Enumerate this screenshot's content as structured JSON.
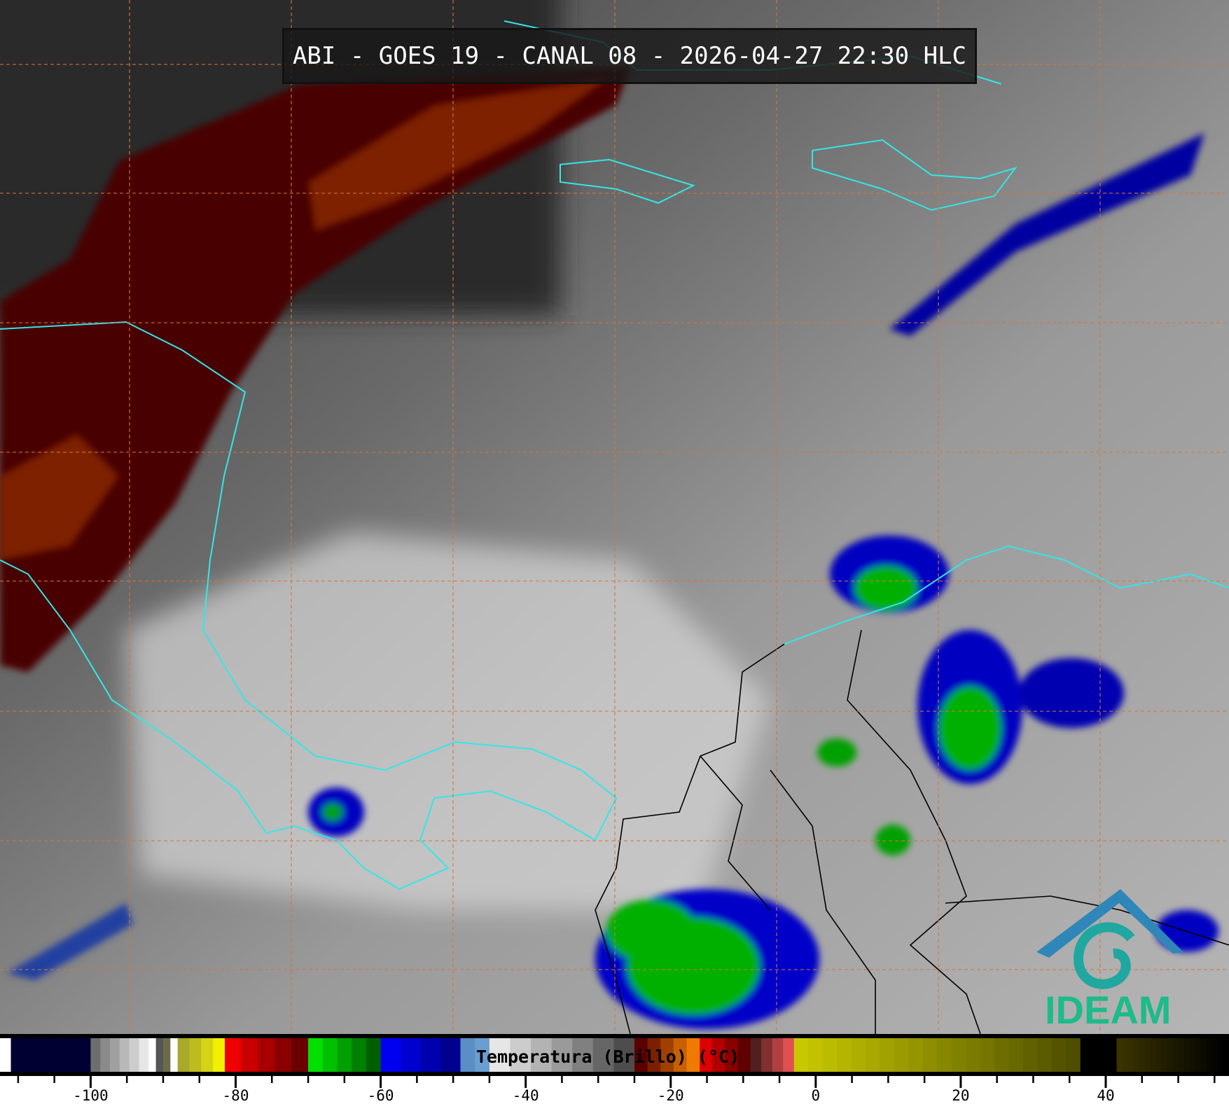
{
  "title": "ABI - GOES 19 - CANAL 08 - 2026-04-27 22:30 HLC",
  "logo": {
    "text": "IDEAM",
    "colors": {
      "roof": "#2f86b8",
      "swirl": "#1fa7a0",
      "text": "#1dbb8a"
    }
  },
  "map_colors": {
    "coastline": "#33e6e6",
    "borders": "#000000",
    "grid": "#d2773a"
  },
  "colorbar": {
    "label": "Temperatura (Brillo) (°C)",
    "range": [
      -112.5,
      57
    ],
    "ticks_major": [
      -100,
      -80,
      -60,
      -40,
      -20,
      0,
      20,
      40
    ],
    "tick_labels": [
      "-100",
      "-80",
      "-60",
      "-40",
      "-20",
      "0",
      "20",
      "40"
    ],
    "minor_step": 5,
    "segments": [
      {
        "from": -112.5,
        "to": -111,
        "colors": [
          "#ffffff"
        ]
      },
      {
        "from": -111,
        "to": -100,
        "colors": [
          "#000033"
        ]
      },
      {
        "from": -100,
        "to": -92,
        "colors": [
          "#6e6e6e",
          "#8a8a8a",
          "#a0a0a0",
          "#b8b8b8",
          "#cdcdcd",
          "#e6e6e6"
        ]
      },
      {
        "from": -92,
        "to": -91,
        "colors": [
          "#ffffff"
        ]
      },
      {
        "from": -91,
        "to": -89,
        "colors": [
          "#555555",
          "#6b6b4a"
        ]
      },
      {
        "from": -89,
        "to": -88,
        "colors": [
          "#ffffff"
        ]
      },
      {
        "from": -88,
        "to": -81.5,
        "colors": [
          "#a8a82a",
          "#bcbc20",
          "#d4d414",
          "#f0f000"
        ]
      },
      {
        "from": -81.5,
        "to": -70,
        "colors": [
          "#ee0000",
          "#c80000",
          "#a80000",
          "#8a0000",
          "#6a0000"
        ]
      },
      {
        "from": -70,
        "to": -60,
        "colors": [
          "#00e000",
          "#00c000",
          "#00a000",
          "#008000",
          "#006000"
        ]
      },
      {
        "from": -60,
        "to": -49,
        "colors": [
          "#0000f0",
          "#0000d0",
          "#0000b0",
          "#000090"
        ]
      },
      {
        "from": -49,
        "to": -45,
        "colors": [
          "#5a8ec4",
          "#6a9ed0"
        ]
      },
      {
        "from": -45,
        "to": -25,
        "colors": [
          "#e6e6e6",
          "#cccccc",
          "#b3b3b3",
          "#9a9a9a",
          "#808080",
          "#666666",
          "#4d4d4d"
        ]
      },
      {
        "from": -25,
        "to": -16,
        "colors": [
          "#5a0000",
          "#7a2000",
          "#a04000",
          "#c86000",
          "#ee7a00"
        ]
      },
      {
        "from": -16,
        "to": -9,
        "colors": [
          "#dd0000",
          "#b00000",
          "#880000",
          "#600000"
        ]
      },
      {
        "from": -9,
        "to": -3,
        "colors": [
          "#502020",
          "#803030",
          "#b04040",
          "#e05050"
        ]
      },
      {
        "from": -3,
        "to": 36.5,
        "colors": [
          "#c8c800",
          "#4e4e00"
        ]
      },
      {
        "from": 36.5,
        "to": 41.5,
        "colors": [
          "#000000"
        ]
      },
      {
        "from": 41.5,
        "to": 57,
        "colors": [
          "#3a3300",
          "#000000"
        ]
      }
    ]
  }
}
